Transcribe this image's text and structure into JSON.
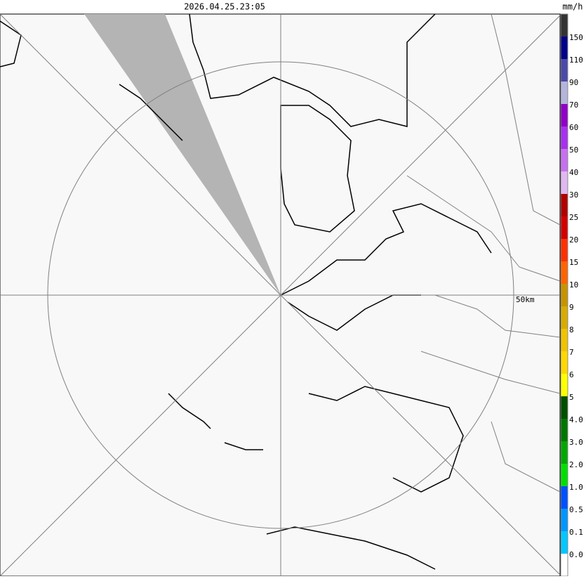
{
  "header": {
    "timestamp": "2026.04.25.23:05"
  },
  "map": {
    "range_label": "50km"
  },
  "legend": {
    "unit": "mm/h",
    "colors": [
      "#333333",
      "#00008b",
      "#4a4aaa",
      "#b4b4dc",
      "#9000c8",
      "#a830f0",
      "#c870f0",
      "#e0b8f0",
      "#b00000",
      "#d40000",
      "#ff3000",
      "#ff6400",
      "#c89400",
      "#d8ac00",
      "#f0c400",
      "#ffd800",
      "#ffff00",
      "#005000",
      "#007800",
      "#00a800",
      "#00e000",
      "#0050ff",
      "#0096ff",
      "#00c8ff",
      "#ffffff"
    ],
    "labels": [
      "150",
      "110",
      "90",
      "70",
      "60",
      "50",
      "40",
      "30",
      "25",
      "20",
      "15",
      "10",
      "9",
      "8",
      "7",
      "6",
      "5",
      "4.0",
      "3.0",
      "2.0",
      "1.0",
      "0.5",
      "0.1",
      "0.0"
    ]
  }
}
